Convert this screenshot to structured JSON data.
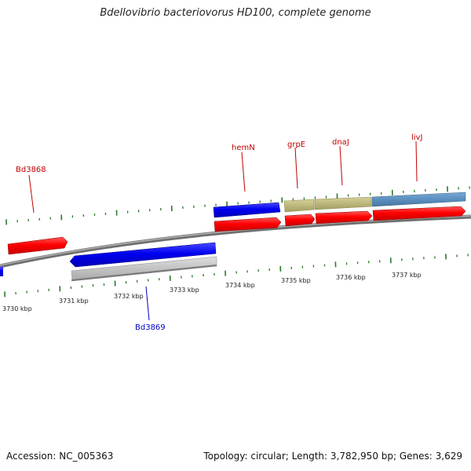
{
  "title": "Bdellovibrio bacteriovorus HD100, complete genome",
  "footer": {
    "accession": "Accession: NC_005363",
    "stats": "Topology: circular; Length: 3,782,950 bp; Genes: 3,629"
  },
  "colors": {
    "forward_cds": "#ff0000",
    "reverse_cds": "#0000ff",
    "rna": "#bcb77a",
    "other": "#5b8fbf",
    "pseudo": "#c0c0c0",
    "forward_label": "#c00000",
    "reverse_label": "#0000c0",
    "ticks": "#2a7a2a",
    "backbone": "#888888"
  },
  "scale": {
    "labels": [
      "3730 kbp",
      "3731 kbp",
      "3732 kbp",
      "3733 kbp",
      "3734 kbp",
      "3735 kbp",
      "3736 kbp",
      "3737 kbp"
    ]
  },
  "gene_labels": [
    {
      "name": "Bd3868",
      "strand": "forward"
    },
    {
      "name": "hemN",
      "strand": "forward"
    },
    {
      "name": "grpE",
      "strand": "forward"
    },
    {
      "name": "dnaJ",
      "strand": "forward"
    },
    {
      "name": "livJ",
      "strand": "forward"
    },
    {
      "name": "Bd3869",
      "strand": "reverse"
    }
  ]
}
